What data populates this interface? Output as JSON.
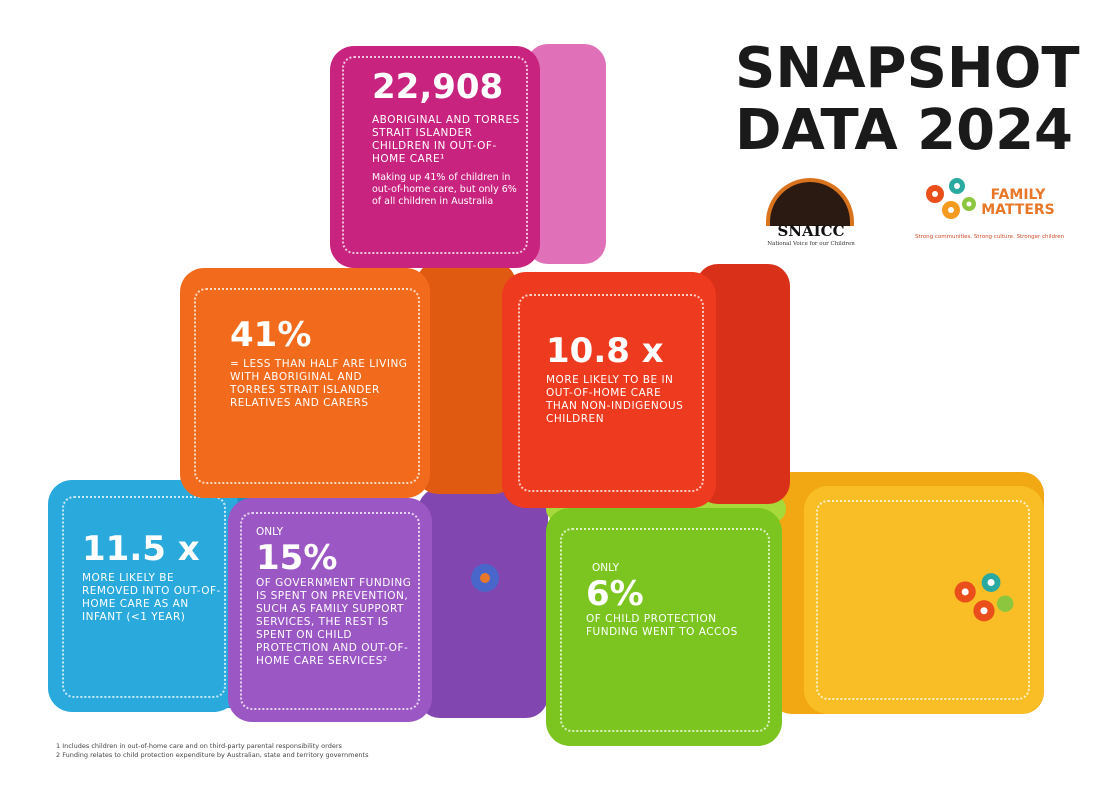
{
  "title": {
    "line1": "SNAPSHOT",
    "line2": "DATA 2024"
  },
  "logos": {
    "snaicc": {
      "name": "SNAICC",
      "tagline": "National Voice for our Children"
    },
    "family_matters": {
      "name_line1": "FAMILY",
      "name_line2": "MATTERS",
      "tagline": "Strong communities. Strong culture. Stronger children"
    }
  },
  "cubes": {
    "magenta": {
      "stat": "22,908",
      "caption": "ABORIGINAL AND TORRES STRAIT ISLANDER CHILDREN IN OUT-OF-HOME CARE¹",
      "note": "Making up 41% of children in out-of-home care, but only 6% of all children in Australia",
      "color": "#c8237f"
    },
    "orange": {
      "stat": "41%",
      "caption": "= LESS THAN HALF ARE LIVING WITH ABORIGINAL AND TORRES STRAIT ISLANDER RELATIVES AND CARERS",
      "color": "#f26a1b"
    },
    "red": {
      "stat": "10.8 x",
      "caption": "MORE LIKELY TO BE IN OUT-OF-HOME CARE THAN NON-INDIGENOUS CHILDREN",
      "color": "#ee3a1e"
    },
    "blue": {
      "stat": "11.5 x",
      "caption": "MORE LIKELY BE REMOVED INTO OUT-OF-HOME CARE AS AN INFANT (<1 YEAR)",
      "color": "#2aa9dd"
    },
    "purple": {
      "prefix": "ONLY",
      "stat": "15%",
      "caption": "OF GOVERNMENT FUNDING IS SPENT ON PREVENTION, SUCH AS FAMILY SUPPORT SERVICES, THE REST IS SPENT ON CHILD PROTECTION AND OUT-OF-HOME CARE SERVICES²",
      "color": "#9b57c4"
    },
    "green": {
      "prefix": "ONLY",
      "stat": "6%",
      "caption": "OF CHILD PROTECTION FUNDING WENT TO ACCOS",
      "color": "#7cc520"
    },
    "yellow": {
      "color": "#f7b51a"
    }
  },
  "footnotes": {
    "one": "1  Includes children in out-of-home care and on third-party parental responsibility orders",
    "two": "2  Funding relates to child protection expenditure by Australian, state and territory governments"
  }
}
